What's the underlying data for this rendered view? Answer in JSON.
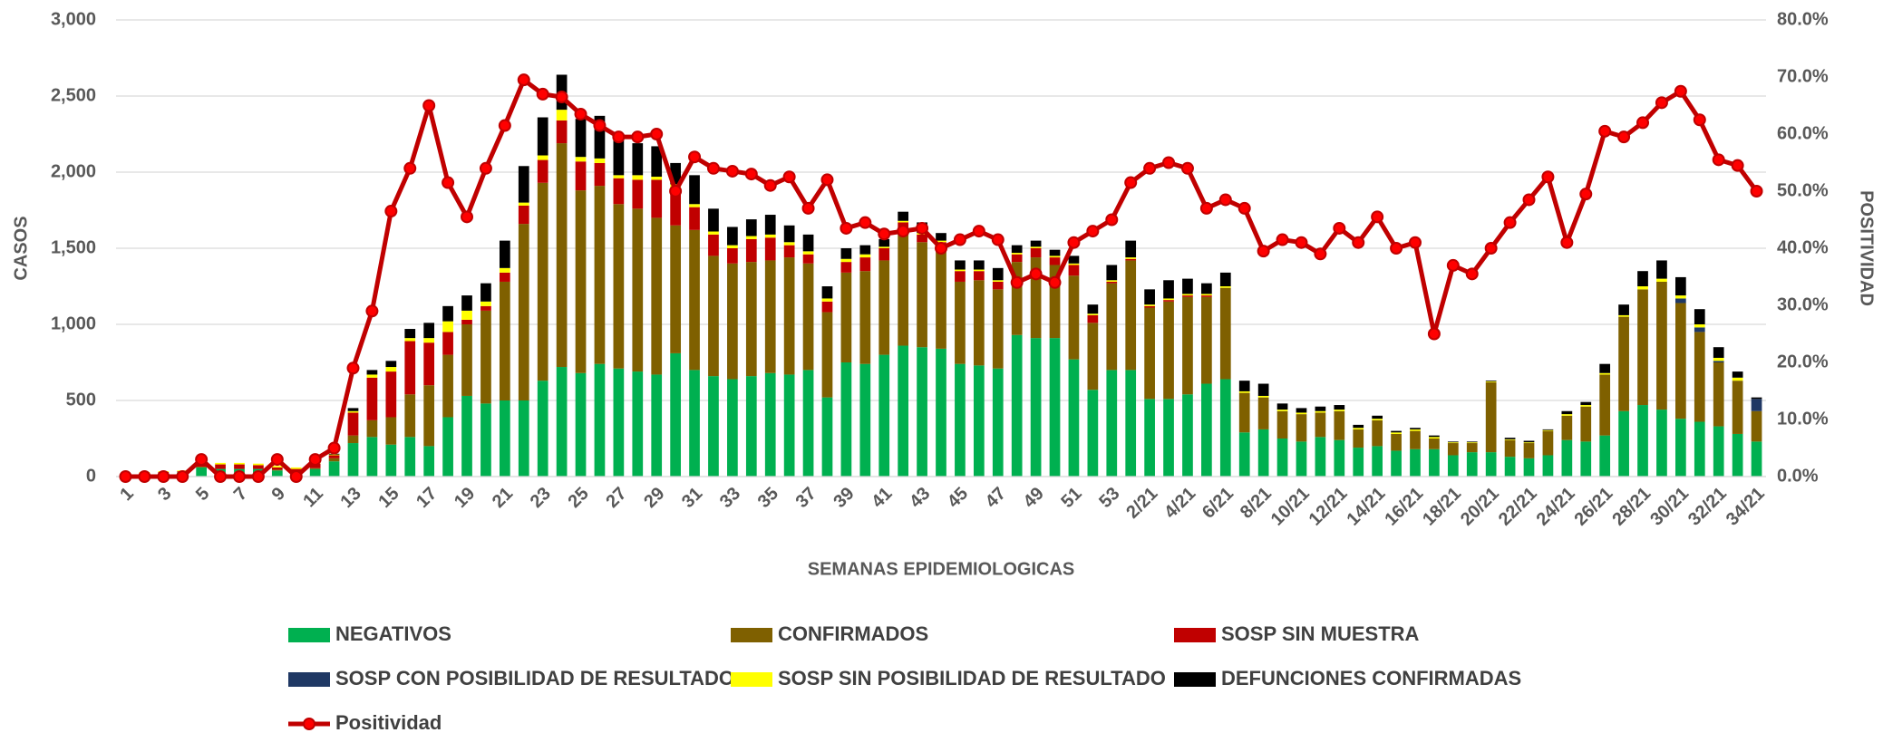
{
  "chart_data": {
    "type": "bar",
    "stacked": true,
    "xlabel": "SEMANAS EPIDEMIOLOGICAS",
    "ylabel": "CASOS",
    "y2label": "POSITIVIDAD",
    "categories": [
      "1",
      null,
      "3",
      null,
      "5",
      null,
      "7",
      null,
      "9",
      null,
      "11",
      null,
      "13",
      null,
      "15",
      null,
      "17",
      null,
      "19",
      null,
      "21",
      null,
      "23",
      null,
      "25",
      null,
      "27",
      null,
      "29",
      null,
      "31",
      null,
      "33",
      null,
      "35",
      null,
      "37",
      null,
      "39",
      null,
      "41",
      null,
      "43",
      null,
      "45",
      null,
      "47",
      null,
      "49",
      null,
      "51",
      null,
      "53",
      null,
      "2/21",
      null,
      "4/21",
      null,
      "6/21",
      null,
      "8/21",
      null,
      "10/21",
      null,
      "12/21",
      null,
      "14/21",
      null,
      "16/21",
      null,
      "18/21",
      null,
      "20/21",
      null,
      "22/21",
      null,
      "24/21",
      null,
      "26/21",
      null,
      "28/21",
      null,
      "30/21",
      null,
      "32/21",
      null,
      "34/21"
    ],
    "ylim": [
      0,
      3000
    ],
    "yticks": [
      0,
      500,
      {
        "value": 1000,
        "label": "1,000"
      },
      {
        "value": 1500,
        "label": "1,500"
      },
      {
        "value": 2000,
        "label": "2,000"
      },
      {
        "value": 2500,
        "label": "2,500"
      },
      {
        "value": 3000,
        "label": "3,000"
      }
    ],
    "y2lim": [
      0,
      80
    ],
    "y2ticks": [
      {
        "value": 0,
        "label": "0.0%"
      },
      {
        "value": 10,
        "label": "10.0%"
      },
      {
        "value": 20,
        "label": "20.0%"
      },
      {
        "value": 30,
        "label": "30.0%"
      },
      {
        "value": 40,
        "label": "40.0%"
      },
      {
        "value": 50,
        "label": "50.0%"
      },
      {
        "value": 60,
        "label": "60.0%"
      },
      {
        "value": 70,
        "label": "70.0%"
      },
      {
        "value": 80,
        "label": "80.0%"
      }
    ],
    "grid": true,
    "legend": "bottom",
    "series": [
      {
        "name": "NEGATIVOS",
        "color": "#00b050",
        "values": [
          5,
          20,
          25,
          30,
          60,
          50,
          50,
          50,
          40,
          30,
          50,
          100,
          220,
          260,
          210,
          260,
          200,
          390,
          530,
          480,
          500,
          500,
          630,
          720,
          680,
          740,
          710,
          690,
          670,
          810,
          700,
          660,
          640,
          660,
          680,
          670,
          700,
          520,
          750,
          740,
          800,
          860,
          850,
          840,
          740,
          730,
          710,
          930,
          910,
          910,
          770,
          570,
          700,
          700,
          510,
          510,
          540,
          610,
          640,
          290,
          310,
          250,
          230,
          260,
          240,
          190,
          200,
          170,
          180,
          180,
          140,
          160,
          160,
          130,
          120,
          140,
          240,
          230,
          270,
          430,
          470,
          440,
          380,
          360,
          330,
          280,
          230
        ]
      },
      {
        "name": "CONFIRMADOS",
        "color": "#7f6000",
        "values": [
          0,
          0,
          0,
          0,
          5,
          0,
          0,
          0,
          5,
          0,
          5,
          20,
          50,
          110,
          180,
          280,
          400,
          410,
          470,
          610,
          780,
          1160,
          1300,
          1470,
          1200,
          1170,
          1080,
          1070,
          1030,
          840,
          920,
          790,
          760,
          750,
          740,
          770,
          700,
          560,
          590,
          610,
          620,
          740,
          690,
          670,
          540,
          560,
          520,
          480,
          530,
          480,
          550,
          440,
          570,
          720,
          600,
          640,
          640,
          570,
          600,
          260,
          210,
          180,
          180,
          160,
          190,
          120,
          170,
          110,
          120,
          70,
          80,
          60,
          460,
          110,
          100,
          160,
          160,
          230,
          400,
          620,
          760,
          840,
          760,
          590,
          420,
          350,
          200
        ]
      },
      {
        "name": "SOSP SIN MUESTRA",
        "color": "#c00000",
        "values": [
          0,
          5,
          5,
          5,
          20,
          30,
          30,
          25,
          15,
          20,
          30,
          20,
          150,
          280,
          300,
          350,
          280,
          150,
          30,
          30,
          60,
          120,
          150,
          150,
          190,
          150,
          170,
          190,
          250,
          250,
          150,
          140,
          100,
          150,
          150,
          80,
          60,
          70,
          70,
          90,
          80,
          70,
          50,
          30,
          70,
          60,
          50,
          50,
          60,
          50,
          70,
          50,
          10,
          10,
          10,
          10,
          10,
          10,
          0,
          0,
          0,
          0,
          0,
          0,
          0,
          0,
          0,
          0,
          0,
          0,
          0,
          0,
          0,
          0,
          0,
          0,
          0,
          0,
          0,
          0,
          0,
          0,
          0,
          0,
          0,
          0,
          0
        ]
      },
      {
        "name": "SOSP CON POSIBILIDAD DE RESULTADO",
        "color": "#1f3864",
        "values": [
          0,
          0,
          0,
          0,
          0,
          0,
          0,
          0,
          0,
          0,
          0,
          0,
          0,
          0,
          0,
          0,
          0,
          0,
          0,
          0,
          0,
          0,
          0,
          0,
          0,
          0,
          0,
          0,
          0,
          0,
          0,
          0,
          0,
          0,
          0,
          0,
          0,
          0,
          0,
          0,
          0,
          0,
          0,
          0,
          0,
          0,
          0,
          0,
          0,
          0,
          0,
          0,
          0,
          0,
          0,
          0,
          0,
          0,
          0,
          0,
          0,
          0,
          0,
          0,
          0,
          0,
          0,
          0,
          0,
          0,
          0,
          0,
          0,
          0,
          0,
          0,
          0,
          0,
          0,
          0,
          0,
          0,
          30,
          30,
          10,
          0,
          80
        ]
      },
      {
        "name": "SOSP SIN POSIBILIDAD DE RESULTADO",
        "color": "#ffff00",
        "values": [
          0,
          5,
          5,
          5,
          15,
          10,
          10,
          10,
          10,
          10,
          10,
          5,
          10,
          20,
          30,
          20,
          30,
          70,
          60,
          30,
          30,
          20,
          30,
          70,
          30,
          30,
          20,
          30,
          20,
          20,
          20,
          20,
          20,
          20,
          20,
          20,
          20,
          20,
          20,
          20,
          10,
          10,
          10,
          10,
          10,
          10,
          10,
          10,
          10,
          10,
          10,
          10,
          10,
          10,
          10,
          10,
          10,
          10,
          10,
          10,
          10,
          10,
          10,
          10,
          10,
          10,
          10,
          10,
          10,
          10,
          5,
          5,
          5,
          5,
          5,
          5,
          10,
          10,
          10,
          10,
          20,
          20,
          20,
          20,
          20,
          20,
          0
        ]
      },
      {
        "name": "DEFUNCIONES CONFIRMADAS",
        "color": "#000000",
        "values": [
          0,
          0,
          0,
          0,
          0,
          0,
          0,
          0,
          0,
          0,
          0,
          5,
          20,
          30,
          40,
          60,
          100,
          100,
          100,
          120,
          180,
          240,
          250,
          230,
          250,
          280,
          230,
          210,
          200,
          140,
          190,
          150,
          120,
          110,
          130,
          110,
          110,
          80,
          70,
          60,
          50,
          60,
          70,
          50,
          60,
          60,
          80,
          50,
          40,
          40,
          50,
          60,
          100,
          110,
          100,
          120,
          100,
          70,
          90,
          70,
          80,
          40,
          30,
          30,
          30,
          20,
          20,
          10,
          10,
          10,
          5,
          5,
          5,
          10,
          10,
          5,
          20,
          20,
          60,
          70,
          100,
          120,
          120,
          100,
          70,
          40,
          10
        ]
      },
      {
        "name": "Positividad",
        "type": "line",
        "axis": "y2",
        "color": "#c00000",
        "marker_color": "#ff0000",
        "values": [
          0,
          0,
          0,
          0,
          3,
          0,
          0,
          0,
          3,
          0,
          3,
          5,
          19,
          29,
          46.5,
          54,
          65,
          51.5,
          45.5,
          54,
          61.5,
          69.5,
          67,
          66.5,
          63.5,
          61.5,
          59.5,
          59.5,
          60,
          50,
          56,
          54,
          53.5,
          53,
          51,
          52.5,
          47,
          52,
          43.5,
          44.5,
          42.5,
          43,
          43.5,
          40,
          41.5,
          43,
          41.5,
          34,
          35.5,
          34,
          41,
          43,
          45,
          51.5,
          54,
          55,
          54,
          47,
          48.5,
          47,
          39.5,
          41.5,
          41,
          39,
          43.5,
          41,
          45.5,
          40,
          41,
          25,
          37,
          35.5,
          40,
          44.5,
          48.5,
          52.5,
          41,
          49.5,
          60.5,
          59.5,
          62,
          65.5,
          67.5,
          62.5,
          55.5,
          54.5,
          50
        ]
      }
    ]
  }
}
